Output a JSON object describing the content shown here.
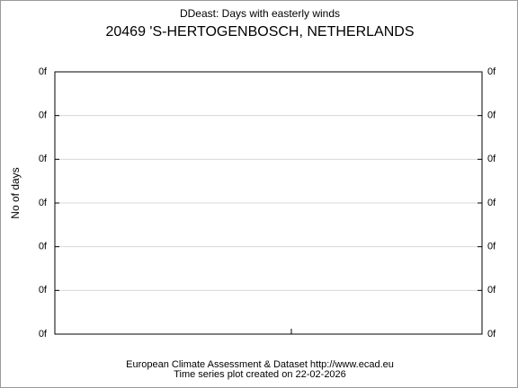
{
  "chart_data": {
    "type": "line",
    "title": "DDeast: Days with easterly winds",
    "subtitle": "20469 'S-HERTOGENBOSCH, NETHERLANDS",
    "y_label": "No of days",
    "series": [],
    "ylim": [
      0,
      6
    ],
    "yticks": [
      {
        "value": 0,
        "label": "0f"
      },
      {
        "value": 1,
        "label": "0f"
      },
      {
        "value": 2,
        "label": "0f"
      },
      {
        "value": 3,
        "label": "0f"
      },
      {
        "value": 4,
        "label": "0f"
      },
      {
        "value": 5,
        "label": "0f"
      },
      {
        "value": 6,
        "label": "0f"
      }
    ],
    "grid": true,
    "source": "European Climate Assessment & Dataset  http://www.ecad.eu",
    "note": "Time series plot created on 22-02-2026"
  }
}
